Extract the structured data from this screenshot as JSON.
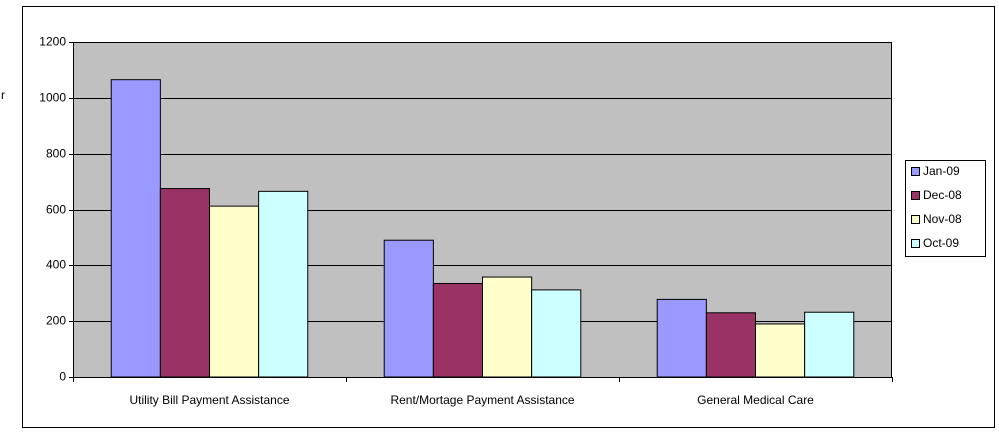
{
  "annotation": "r",
  "chart_data": {
    "type": "bar",
    "categories": [
      "Utility Bill Payment Assistance",
      "Rent/Mortage Payment Assistance",
      "General Medical Care"
    ],
    "series": [
      {
        "name": "Jan-09",
        "color": "#9999ff",
        "values": [
          1065,
          490,
          278
        ]
      },
      {
        "name": "Dec-08",
        "color": "#993366",
        "values": [
          675,
          335,
          230
        ]
      },
      {
        "name": "Nov-08",
        "color": "#ffffcc",
        "values": [
          612,
          358,
          190
        ]
      },
      {
        "name": "Oct-09",
        "color": "#ccffff",
        "values": [
          665,
          312,
          232
        ]
      }
    ],
    "ylim": [
      0,
      1200
    ],
    "yticks": [
      0,
      200,
      400,
      600,
      800,
      1000,
      1200
    ],
    "grid": true,
    "legend": "right",
    "plot_background": "#c0c0c0"
  }
}
